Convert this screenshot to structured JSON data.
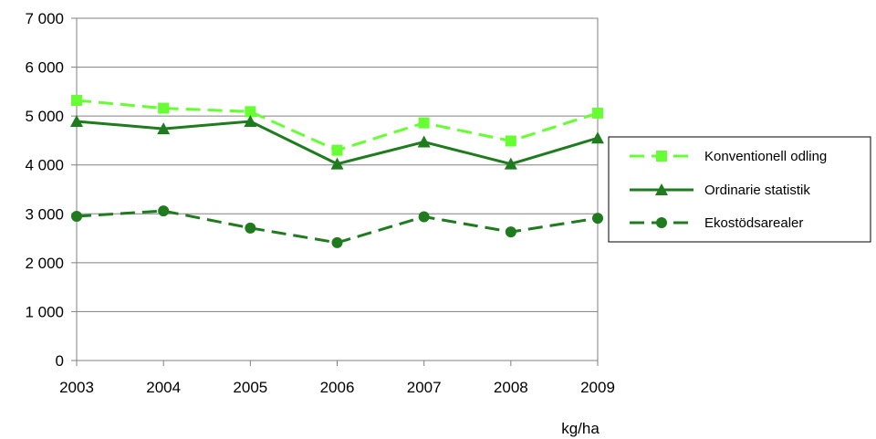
{
  "chart_data": {
    "type": "line",
    "title": "",
    "xlabel": "",
    "ylabel": "",
    "unit_label": "kg/ha",
    "categories": [
      "2003",
      "2004",
      "2005",
      "2006",
      "2007",
      "2008",
      "2009"
    ],
    "ylim": [
      0,
      7000
    ],
    "yticks": [
      0,
      1000,
      2000,
      3000,
      4000,
      5000,
      6000,
      7000
    ],
    "ytick_labels": [
      "0",
      "1 000",
      "2 000",
      "3 000",
      "4 000",
      "5 000",
      "6 000",
      "7 000"
    ],
    "grid": true,
    "legend_position": "right",
    "series": [
      {
        "name": "Konventionell odling",
        "values": [
          5320,
          5160,
          5090,
          4300,
          4860,
          4490,
          5060
        ],
        "color": "#66ff33",
        "dash": "dashed",
        "marker": "square"
      },
      {
        "name": "Ordinarie statistik",
        "values": [
          4890,
          4740,
          4890,
          4020,
          4470,
          4020,
          4550
        ],
        "color": "#1e7b1e",
        "dash": "solid",
        "marker": "triangle"
      },
      {
        "name": "Ekostödsarealer",
        "values": [
          2950,
          3060,
          2710,
          2410,
          2940,
          2630,
          2910
        ],
        "color": "#1e7b1e",
        "dash": "dashed",
        "marker": "circle"
      }
    ]
  }
}
